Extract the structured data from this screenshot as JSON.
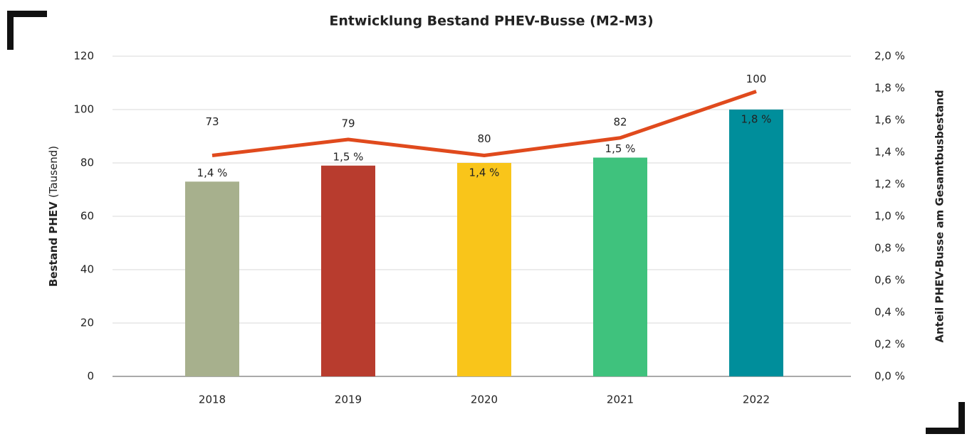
{
  "chart_data": {
    "type": "bar_line",
    "title": "Entwicklung Bestand PHEV-Busse (M2-M3)",
    "y_label": "Bestand PHEV",
    "y_label_unit": "(Tausend)",
    "y2_label": "Anteil PHEV-Busse am Gesamtbusbestand",
    "categories": [
      "2018",
      "2019",
      "2020",
      "2021",
      "2022"
    ],
    "series": [
      {
        "name": "Bestand PHEV",
        "type": "bar",
        "colors": [
          "#a7b08d",
          "#b83c2e",
          "#f9c51a",
          "#3fc27d",
          "#008e9b"
        ],
        "values": [
          73,
          79,
          80,
          82,
          100
        ]
      },
      {
        "name": "Anteil PHEV-Busse",
        "type": "line",
        "axis": "y2",
        "color": "#e04a1d",
        "values": [
          1.38,
          1.48,
          1.38,
          1.49,
          1.78
        ],
        "value_labels": [
          "1,4 %",
          "1,5 %",
          "1,4 %",
          "1,5 %",
          "1,8 %"
        ]
      }
    ],
    "ylim": [
      0,
      120
    ],
    "yticks": [
      0,
      20,
      40,
      60,
      80,
      100,
      120
    ],
    "y2lim": [
      0,
      2.0
    ],
    "y2ticks": [
      {
        "value": 0,
        "label": "0,0 %"
      },
      {
        "value": 0.2,
        "label": "0,2 %"
      },
      {
        "value": 0.4,
        "label": "0,4 %"
      },
      {
        "value": 0.6,
        "label": "0,6 %"
      },
      {
        "value": 0.8,
        "label": "0,8 %"
      },
      {
        "value": 1.0,
        "label": "1,0 %"
      },
      {
        "value": 1.2,
        "label": "1,2 %"
      },
      {
        "value": 1.4,
        "label": "1,4 %"
      },
      {
        "value": 1.6,
        "label": "1,6 %"
      },
      {
        "value": 1.8,
        "label": "1,8 %"
      },
      {
        "value": 2.0,
        "label": "2,0 %"
      }
    ],
    "grid": true
  }
}
